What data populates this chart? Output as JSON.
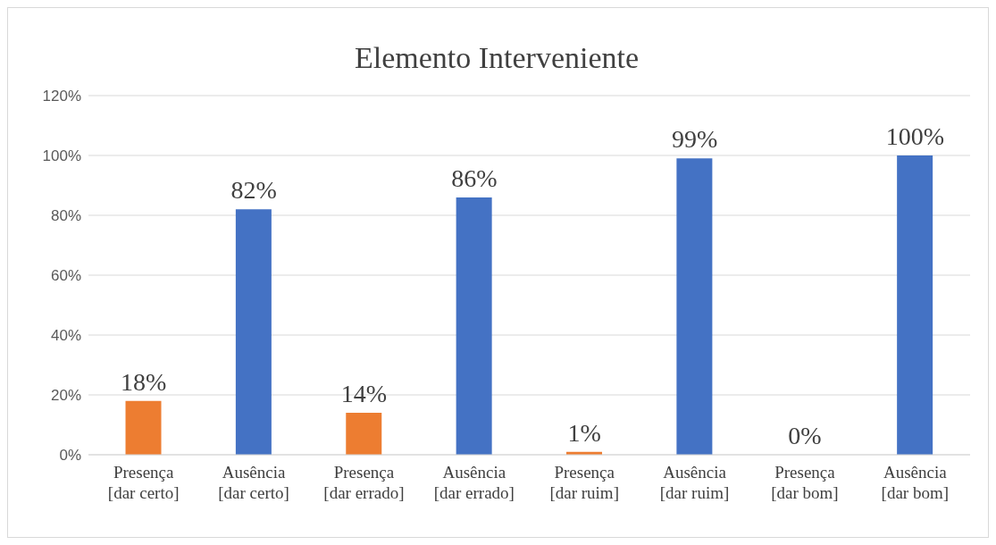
{
  "chart_data": {
    "type": "bar",
    "title": "Elemento Interveniente",
    "categories": [
      "Presença [dar certo]",
      "Ausência [dar certo]",
      "Presença [dar errado]",
      "Ausência [dar errado]",
      "Presença [dar ruim]",
      "Ausência [dar ruim]",
      "Presença [dar bom]",
      "Ausência [dar bom]"
    ],
    "values": [
      18,
      82,
      14,
      86,
      1,
      99,
      0,
      100
    ],
    "colors": [
      "#ed7d31",
      "#4472c4",
      "#ed7d31",
      "#4472c4",
      "#ed7d31",
      "#4472c4",
      "#ed7d31",
      "#4472c4"
    ],
    "value_labels": [
      "18%",
      "82%",
      "14%",
      "86%",
      "1%",
      "99%",
      "0%",
      "100%"
    ],
    "ylim": [
      0,
      120
    ],
    "yticks": [
      {
        "value": 0,
        "label": "0%"
      },
      {
        "value": 20,
        "label": "20%"
      },
      {
        "value": 40,
        "label": "40%"
      },
      {
        "value": 60,
        "label": "60%"
      },
      {
        "value": 80,
        "label": "80%"
      },
      {
        "value": 100,
        "label": "100%"
      },
      {
        "value": 120,
        "label": "120%"
      }
    ],
    "grid": "y",
    "legend": false
  }
}
